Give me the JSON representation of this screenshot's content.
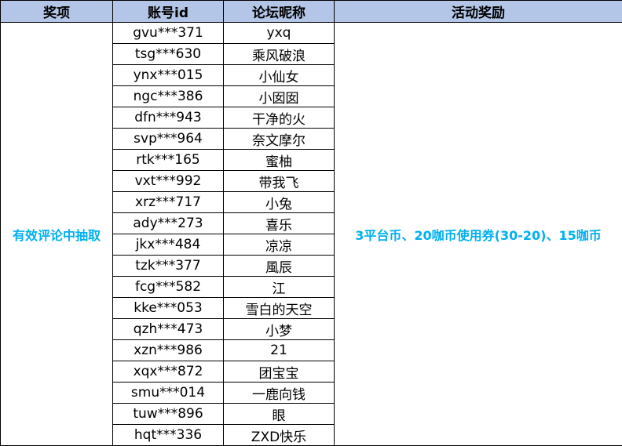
{
  "headers": [
    "奖项",
    "账号id",
    "论坛昵称",
    "活动奖励"
  ],
  "prize_category": "有效评论中抽取",
  "reward": "3平台币、20咖币使用券(30-20)、15咖币",
  "colors": {
    "header_bg": "#b4c6e7",
    "highlight_text": "#00b0f0"
  },
  "rows": [
    {
      "account": "gvu***371",
      "nickname": "yxq"
    },
    {
      "account": "tsg***630",
      "nickname": "乘风破浪"
    },
    {
      "account": "ynx***015",
      "nickname": "小仙女"
    },
    {
      "account": "ngc***386",
      "nickname": "小囡囡"
    },
    {
      "account": "dfn***943",
      "nickname": "干净的火"
    },
    {
      "account": "svp***964",
      "nickname": "奈文摩尔"
    },
    {
      "account": "rtk***165",
      "nickname": "蜜柚"
    },
    {
      "account": "vxt***992",
      "nickname": "带我飞"
    },
    {
      "account": "xrz***717",
      "nickname": "小兔"
    },
    {
      "account": "ady***273",
      "nickname": "喜乐"
    },
    {
      "account": "jkx***484",
      "nickname": "凉凉"
    },
    {
      "account": "tzk***377",
      "nickname": "風辰"
    },
    {
      "account": "fcg***582",
      "nickname": "江"
    },
    {
      "account": "kke***053",
      "nickname": "雪白的天空"
    },
    {
      "account": "qzh***473",
      "nickname": "小梦"
    },
    {
      "account": "xzn***986",
      "nickname": "21"
    },
    {
      "account": "xqx***872",
      "nickname": "团宝宝"
    },
    {
      "account": "smu***014",
      "nickname": "一鹿向钱"
    },
    {
      "account": "tuw***896",
      "nickname": "眼"
    },
    {
      "account": "hqt***336",
      "nickname": "ZXD快乐"
    }
  ]
}
